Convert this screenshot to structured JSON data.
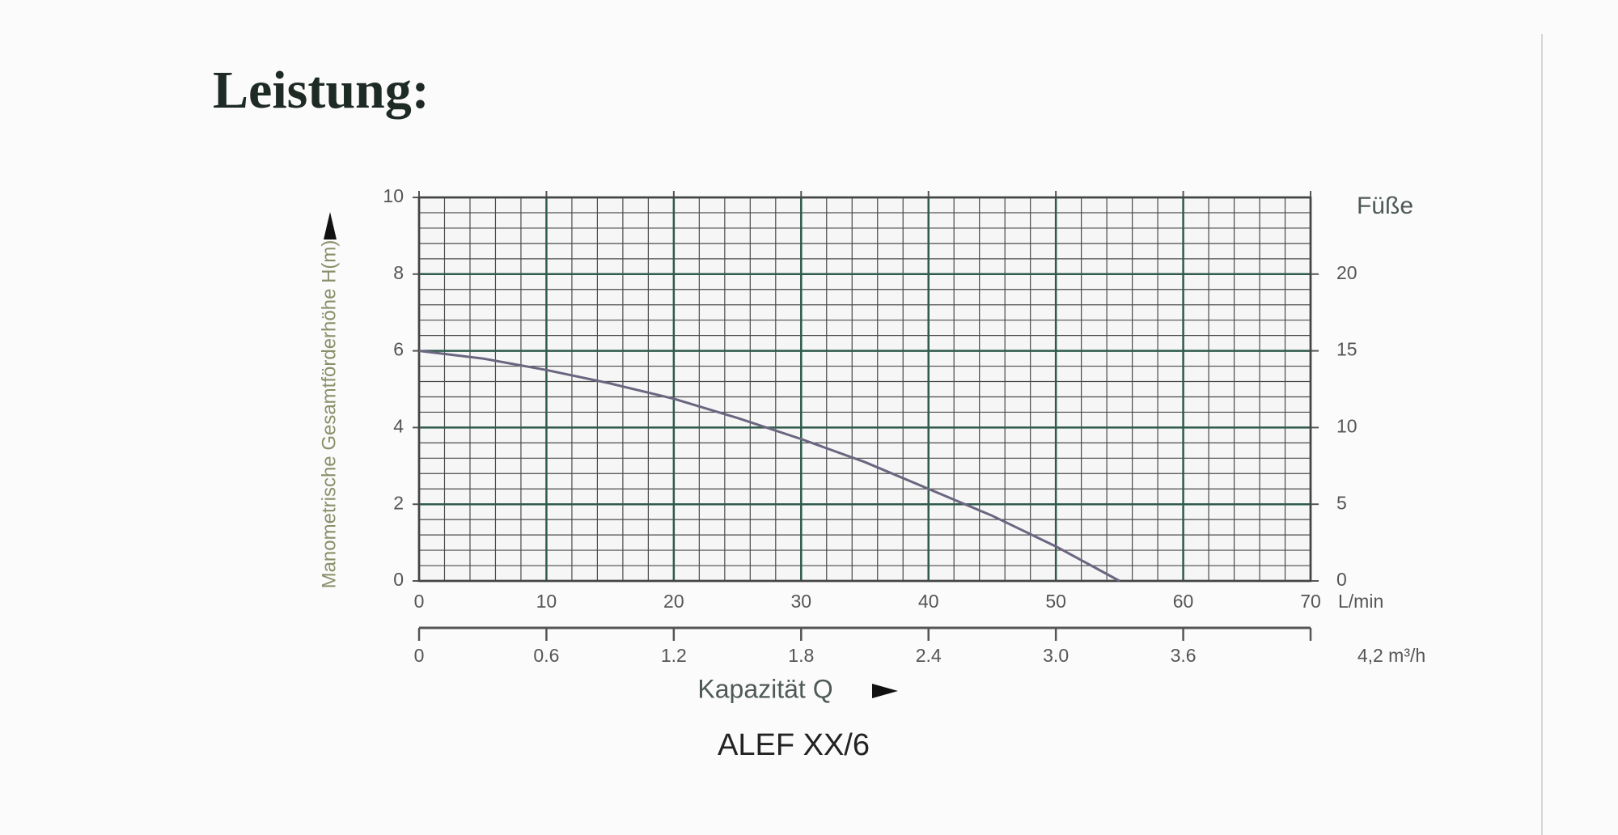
{
  "heading": "Leistung:",
  "chart_data": {
    "type": "line",
    "y_label": "Manometrische Gesamtförderhöhe H(m)",
    "y2_label": "Füße",
    "x_label": "Kapazität Q",
    "x_unit": "L/min",
    "caption": "ALEF XX/6",
    "x": [
      0,
      5,
      10,
      15,
      20,
      25,
      30,
      35,
      40,
      45,
      50,
      55
    ],
    "series": [
      {
        "color": "#6b6680",
        "values": [
          6.0,
          5.8,
          5.5,
          5.15,
          4.75,
          4.25,
          3.7,
          3.1,
          2.4,
          1.7,
          0.9,
          0
        ]
      }
    ],
    "xlim": [
      0,
      70
    ],
    "xticks": [
      0,
      10,
      20,
      30,
      40,
      50,
      60,
      70
    ],
    "ylim": [
      0,
      10
    ],
    "yticks": [
      0,
      2,
      4,
      6,
      8,
      10
    ],
    "y2lim": [
      0,
      25
    ],
    "y2ticks": [
      0,
      5,
      10,
      15,
      20
    ],
    "x2lim": [
      0,
      4.2
    ],
    "x2ticks": [
      0,
      0.6,
      1.2,
      1.8,
      2.4,
      {
        "value": 3,
        "label": "3.0"
      },
      3.6,
      {
        "value": 4.2,
        "label": "4,2 m³/h"
      }
    ],
    "grid": true,
    "minor_divisions": 5
  }
}
